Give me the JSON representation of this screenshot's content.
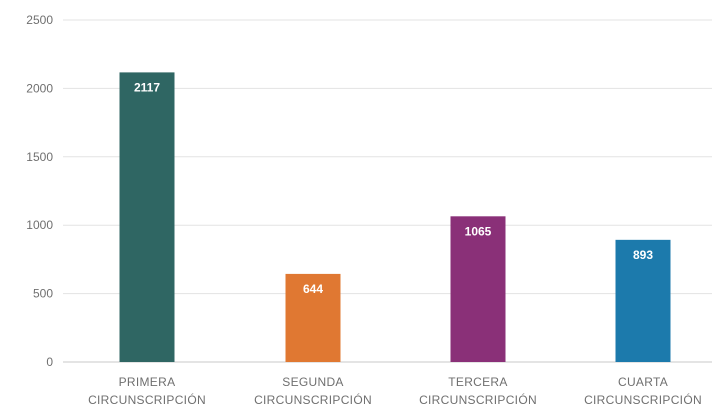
{
  "chart_data": {
    "type": "bar",
    "categories": [
      [
        "PRIMERA",
        "CIRCUNSCRIPCIÓN"
      ],
      [
        "SEGUNDA",
        "CIRCUNSCRIPCIÓN"
      ],
      [
        "TERCERA",
        "CIRCUNSCRIPCIÓN"
      ],
      [
        "CUARTA",
        "CIRCUNSCRIPCIÓN"
      ]
    ],
    "values": [
      2117,
      644,
      1065,
      893
    ],
    "data_labels": [
      "2117",
      "644",
      "1065",
      "893"
    ],
    "colors": [
      "#2f6663",
      "#e07832",
      "#8a3078",
      "#1c7aac"
    ],
    "yticks": [
      "0",
      "500",
      "1000",
      "1500",
      "2000",
      "2500"
    ],
    "ylim": [
      0,
      2500
    ],
    "grid": true,
    "legend": "none"
  }
}
